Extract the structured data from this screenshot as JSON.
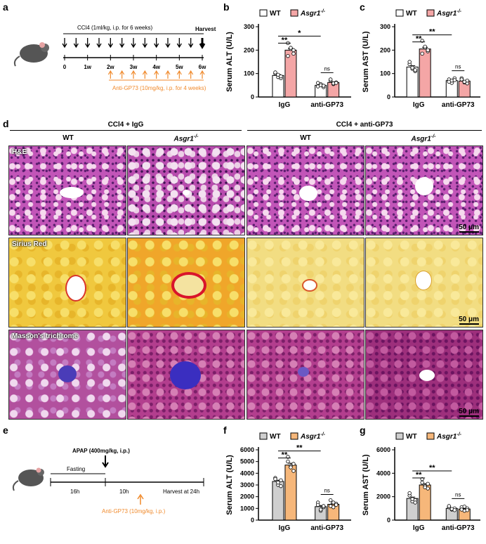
{
  "figure": {
    "panel_labels": {
      "a": "a",
      "b": "b",
      "c": "c",
      "d": "d",
      "e": "e",
      "f": "f",
      "g": "g"
    },
    "colors": {
      "wt_fill": "#ffffff",
      "ko_fill_bc": "#f4a6a6",
      "wt_fill_fg": "#cfcfcf",
      "ko_fill_fg": "#f6b77a",
      "orange": "#f08a2c"
    }
  },
  "panel_a": {
    "ccl4_label": "CCl4 (1ml/kg, i.p. for 6 weeks)",
    "harvest_label": "Harvest",
    "ticks": [
      "0",
      "1w",
      "2w",
      "3w",
      "4w",
      "5w",
      "6w"
    ],
    "antibody_label": "Anti-GP73 (10mg/kg, i.p. for 4 weeks)"
  },
  "panel_d": {
    "group_left": "CCl4 + IgG",
    "group_right": "CCl4 + anti-GP73",
    "col_wt": "WT",
    "col_ko": "Asgr1",
    "col_ko_sup": "-/-",
    "stains": [
      "H&E",
      "Sirius Red",
      "Masson's trichrome"
    ],
    "scale_label": "50 μm"
  },
  "panel_e": {
    "apap_label": "APAP (400mg/kg, i.p.)",
    "fasting_label": "Fasting",
    "h16": "16h",
    "h10": "10h",
    "harvest_label": "Harvest at 24h",
    "antibody_label": "Anti-GP73 (10mg/kg, i.p.)"
  },
  "legend": {
    "wt": "WT",
    "ko": "Asgr1",
    "ko_sup": "-/-"
  },
  "chart_data": [
    {
      "panel": "b",
      "type": "bar",
      "ylabel": "Serum ALT (U/L)",
      "ylim": [
        0,
        300
      ],
      "yticks": [
        "0",
        "100",
        "200",
        "300"
      ],
      "categories": [
        "IgG",
        "anti-GP73"
      ],
      "series": [
        {
          "name": "WT",
          "values": [
            92,
            50
          ],
          "points": [
            [
              100,
              85,
              80,
              105,
              95,
              88
            ],
            [
              45,
              55,
              42,
              60,
              50,
              48
            ]
          ]
        },
        {
          "name": "Asgr1-/-",
          "values": [
            200,
            62
          ],
          "points": [
            [
              230,
              205,
              185,
              175,
              210,
              200
            ],
            [
              70,
              55,
              62,
              75,
              58,
              60
            ]
          ]
        }
      ],
      "annotations": [
        "**",
        "*",
        "ns"
      ]
    },
    {
      "panel": "c",
      "type": "bar",
      "ylabel": "Serum AST (U/L)",
      "ylim": [
        0,
        300
      ],
      "yticks": [
        "0",
        "100",
        "200",
        "300"
      ],
      "categories": [
        "IgG",
        "anti-GP73"
      ],
      "series": [
        {
          "name": "WT",
          "values": [
            128,
            70
          ],
          "points": [
            [
              140,
              120,
              110,
              150,
              125,
              115
            ],
            [
              75,
              60,
              80,
              65,
              70,
              72
            ]
          ]
        },
        {
          "name": "Asgr1-/-",
          "values": [
            205,
            68
          ],
          "points": [
            [
              240,
              210,
              195,
              185,
              215,
              200
            ],
            [
              80,
              62,
              58,
              75,
              65,
              70
            ]
          ]
        }
      ],
      "annotations": [
        "**",
        "**",
        "ns"
      ]
    },
    {
      "panel": "f",
      "type": "bar",
      "ylabel": "Serum ALT (U/L)",
      "ylim": [
        0,
        6000
      ],
      "yticks": [
        "0",
        "1000",
        "2000",
        "3000",
        "4000",
        "5000",
        "6000"
      ],
      "categories": [
        "IgG",
        "anti-GP73"
      ],
      "series": [
        {
          "name": "WT",
          "values": [
            3300,
            1150
          ],
          "points": [
            [
              3600,
              3000,
              2900,
              3500,
              3200,
              3400
            ],
            [
              1500,
              800,
              1100,
              1300,
              900,
              1200
            ]
          ]
        },
        {
          "name": "Asgr1-/-",
          "values": [
            4700,
            1350
          ],
          "points": [
            [
              5400,
              4600,
              4200,
              5000,
              4500,
              4800
            ],
            [
              1700,
              1100,
              1400,
              1200,
              1500,
              1300
            ]
          ]
        }
      ],
      "annotations": [
        "**",
        "**",
        "ns"
      ]
    },
    {
      "panel": "g",
      "type": "bar",
      "ylabel": "Serum AST (U/L)",
      "ylim": [
        0,
        6000
      ],
      "yticks": [
        "0",
        "2000",
        "4000",
        "6000"
      ],
      "categories": [
        "IgG",
        "anti-GP73"
      ],
      "series": [
        {
          "name": "WT",
          "values": [
            1850,
            1000
          ],
          "points": [
            [
              2100,
              1600,
              1700,
              2300,
              1800,
              1500
            ],
            [
              1100,
              900,
              1000,
              1200,
              950,
              850
            ]
          ]
        },
        {
          "name": "Asgr1-/-",
          "values": [
            3000,
            950
          ],
          "points": [
            [
              3500,
              2900,
              2700,
              3200,
              2800,
              3100
            ],
            [
              1100,
              800,
              1000,
              900,
              1150,
              850
            ]
          ]
        }
      ],
      "annotations": [
        "**",
        "**",
        "ns"
      ]
    }
  ]
}
